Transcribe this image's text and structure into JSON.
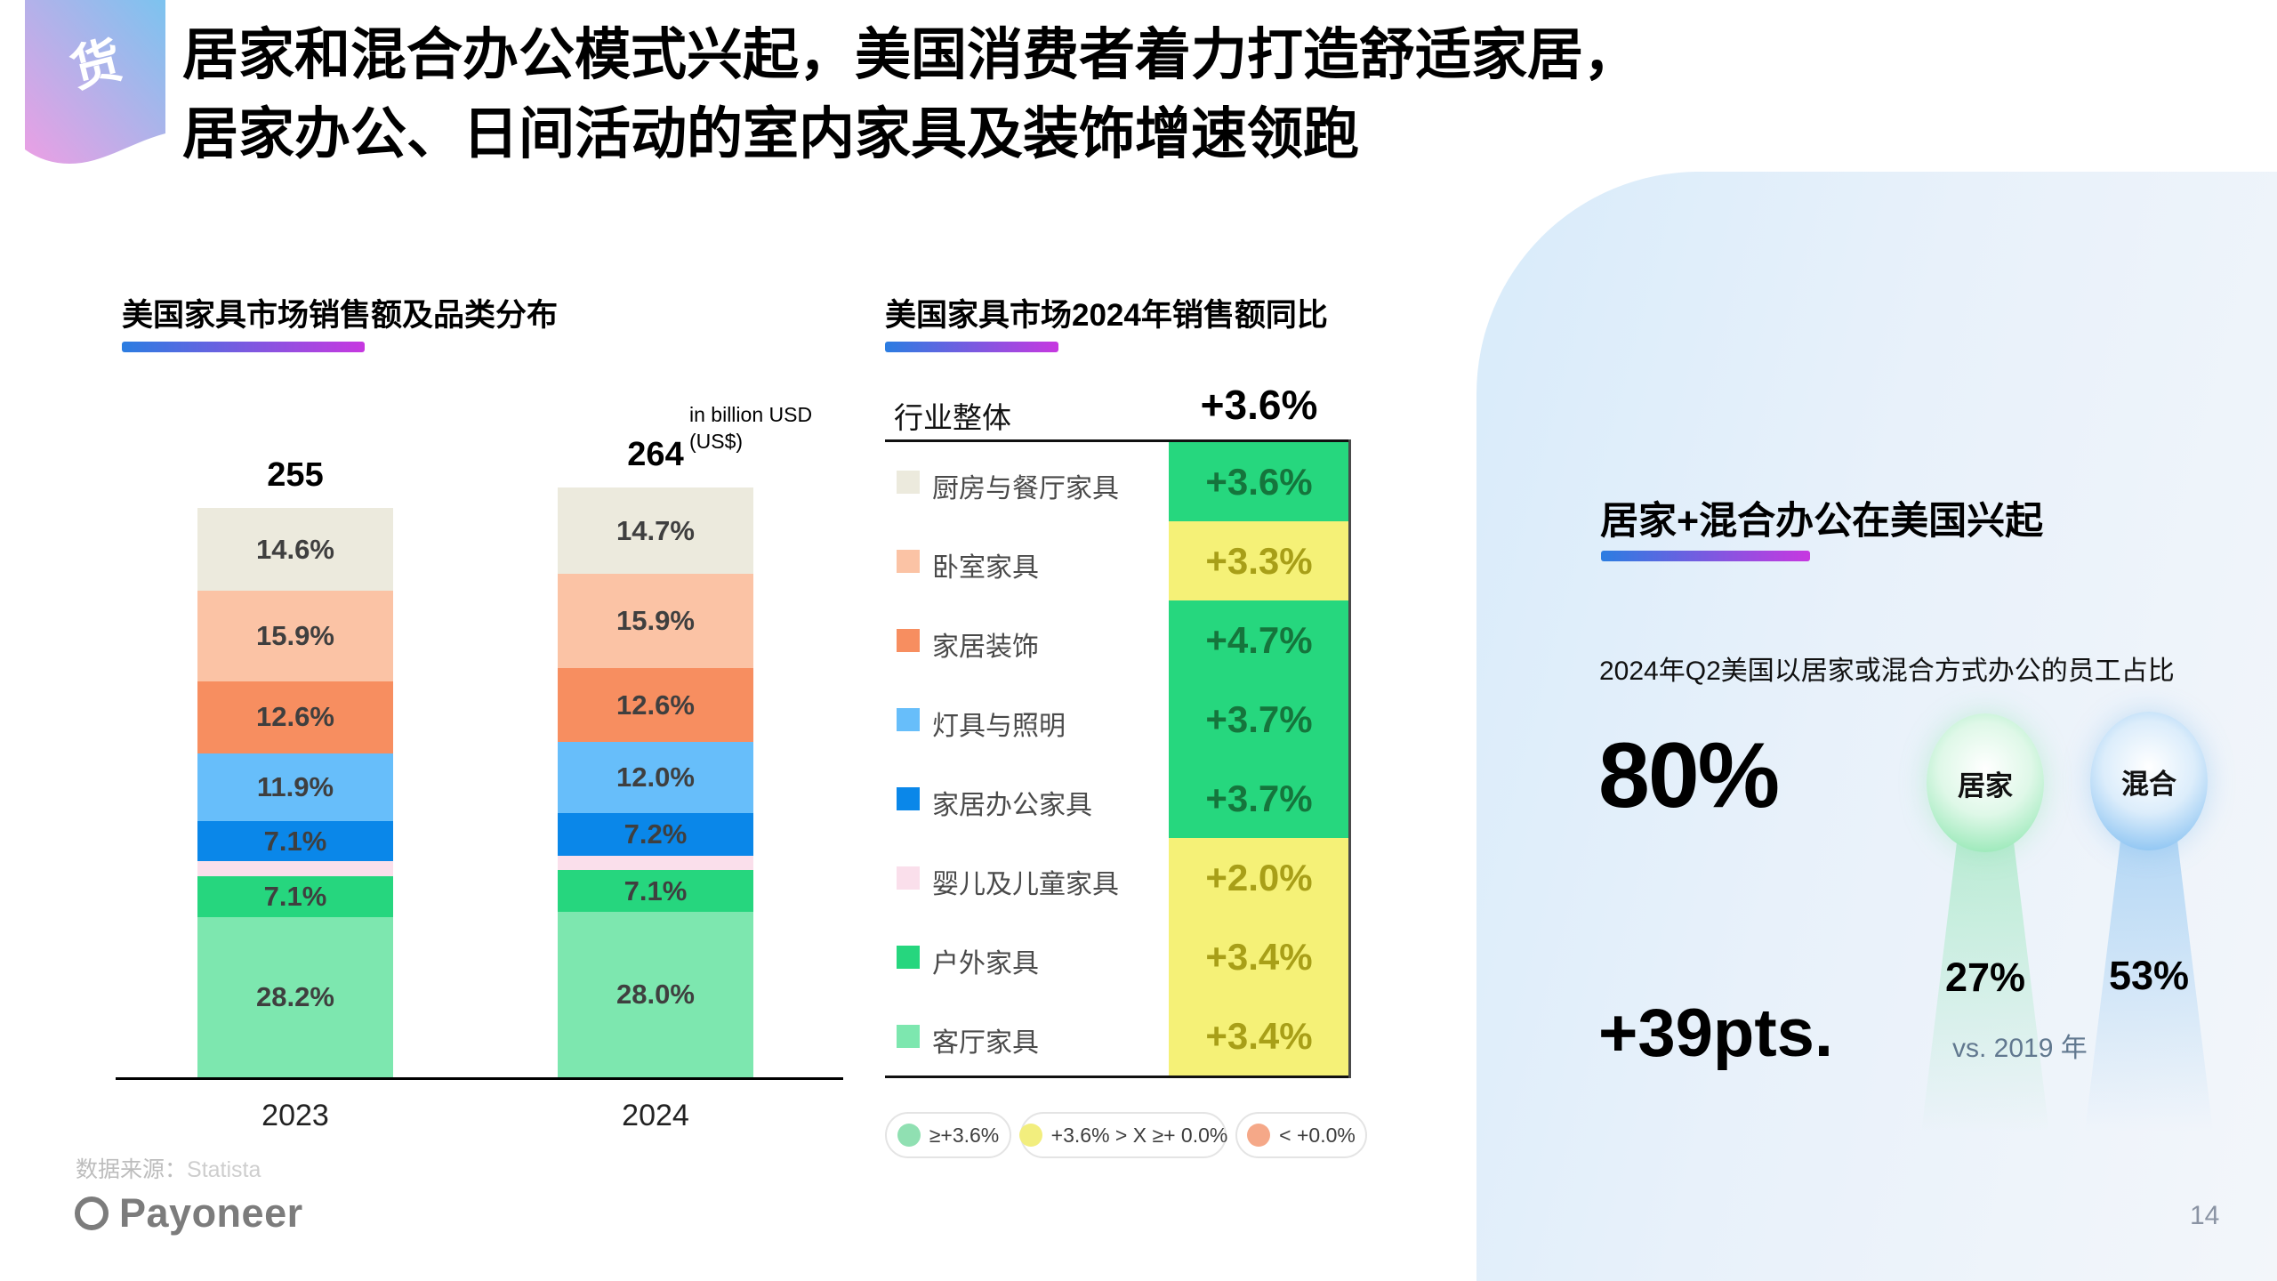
{
  "slide": {
    "badge": "货",
    "title_line1": "居家和混合办公模式兴起，美国消费者着力打造舒适家居，",
    "title_line2": "居家办公、日间活动的室内家具及装饰增速领跑",
    "source_label": "数据来源：",
    "source_value": "Statista",
    "logo_text": "Payoneer",
    "page_number": "14"
  },
  "colors": {
    "underline_from": "#2B7DE1",
    "underline_to": "#C738E0",
    "badge_from": "#EC9FE4",
    "badge_to": "#7CC3EF",
    "band_green": "#26D77E",
    "band_yellow": "#F5F177",
    "green_text": "#15753C",
    "yellow_text": "#A89F18",
    "balloon_green_edge": "#7FE3A6",
    "balloon_green_soft": "#DFF8E8",
    "balloon_blue_edge": "#6FB5EF",
    "balloon_blue_soft": "#DCEDFB",
    "panel_bg_from": "#D8EBFA",
    "panel_bg_to": "#F3F6FA"
  },
  "chart_data": [
    {
      "type": "bar",
      "subtype": "stacked-percent",
      "title": "美国家具市场销售额及品类分布",
      "unit_lines": [
        "in billion USD",
        "(US$)"
      ],
      "categories": [
        "2023",
        "2024"
      ],
      "totals": [
        "255",
        "264"
      ],
      "series": [
        {
          "name": "厨房与餐厅家具",
          "color": "#ECEADD",
          "pct": [
            14.6,
            14.7
          ],
          "labels": [
            "14.6%",
            "14.7%"
          ]
        },
        {
          "name": "卧室家具",
          "color": "#FBC3A5",
          "pct": [
            15.9,
            15.9
          ],
          "labels": [
            "15.9%",
            "15.9%"
          ]
        },
        {
          "name": "家居装饰",
          "color": "#F78E60",
          "pct": [
            12.6,
            12.6
          ],
          "labels": [
            "12.6%",
            "12.6%"
          ]
        },
        {
          "name": "灯具与照明",
          "color": "#67BEFA",
          "pct": [
            11.9,
            12.0
          ],
          "labels": [
            "11.9%",
            "12.0%"
          ]
        },
        {
          "name": "家居办公家具",
          "color": "#0A87E9",
          "pct": [
            7.1,
            7.2
          ],
          "labels": [
            "7.1%",
            "7.2%"
          ]
        },
        {
          "name": "婴儿及儿童家具",
          "color": "#FADFEB",
          "pct": [
            2.6,
            2.5
          ],
          "labels": [
            "",
            ""
          ]
        },
        {
          "name": "户外家具",
          "color": "#26D67E",
          "pct": [
            7.1,
            7.1
          ],
          "labels": [
            "7.1%",
            "7.1%"
          ]
        },
        {
          "name": "客厅家具",
          "color": "#7DE7AF",
          "pct": [
            28.2,
            28.0
          ],
          "labels": [
            "28.2%",
            "28.0%"
          ]
        }
      ]
    },
    {
      "type": "table",
      "title": "美国家具市场2024年销售额同比",
      "header": {
        "label": "行业整体",
        "value": "+3.6%"
      },
      "rows": [
        {
          "label": "厨房与餐厅家具",
          "swatch": "#ECEADD",
          "value": "+3.6%",
          "band": "green"
        },
        {
          "label": "卧室家具",
          "swatch": "#FBC3A5",
          "value": "+3.3%",
          "band": "yellow"
        },
        {
          "label": "家居装饰",
          "swatch": "#F78E60",
          "value": "+4.7%",
          "band": "green"
        },
        {
          "label": "灯具与照明",
          "swatch": "#67BEFA",
          "value": "+3.7%",
          "band": "green"
        },
        {
          "label": "家居办公家具",
          "swatch": "#0A87E9",
          "value": "+3.7%",
          "band": "green"
        },
        {
          "label": "婴儿及儿童家具",
          "swatch": "#FADFEB",
          "value": "+2.0%",
          "band": "yellow"
        },
        {
          "label": "户外家具",
          "swatch": "#26D67E",
          "value": "+3.4%",
          "band": "yellow"
        },
        {
          "label": "客厅家具",
          "swatch": "#7DE7AF",
          "value": "+3.4%",
          "band": "yellow"
        }
      ],
      "legend": [
        {
          "label": "≥+3.6%",
          "color": "#90E0B2"
        },
        {
          "label": "+3.6% > X ≥+ 0.0%",
          "color": "#F2EE7E"
        },
        {
          "label": "< +0.0%",
          "color": "#F5A888"
        }
      ]
    }
  ],
  "right_panel": {
    "title": "居家+混合办公在美国兴起",
    "subtitle": "2024年Q2美国以居家或混合方式办公的员工占比",
    "headline_value": "80%",
    "balloons": [
      {
        "label": "居家",
        "value": "27%",
        "theme": "green"
      },
      {
        "label": "混合",
        "value": "53%",
        "theme": "blue"
      }
    ],
    "delta": "+39pts.",
    "delta_note": "vs. 2019 年"
  }
}
